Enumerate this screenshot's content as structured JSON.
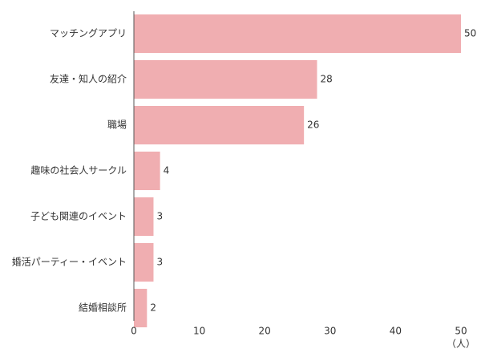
{
  "chart_data": {
    "type": "bar",
    "orientation": "horizontal",
    "categories": [
      "マッチングアプリ",
      "友達・知人の紹介",
      "職場",
      "趣味の社会人サークル",
      "子ども関連のイベント",
      "婚活パーティー・イベント",
      "結婚相談所"
    ],
    "values": [
      50,
      28,
      26,
      4,
      3,
      3,
      2
    ],
    "value_labels": [
      "50",
      "28",
      "26",
      "4",
      "3",
      "3",
      "2"
    ],
    "xlim": [
      0,
      50
    ],
    "x_ticks": [
      "0",
      "10",
      "20",
      "30",
      "40",
      "50"
    ],
    "x_unit": "（人）",
    "grid": false,
    "bar_color": "#f0aeb1",
    "axis_color": "#555555"
  }
}
